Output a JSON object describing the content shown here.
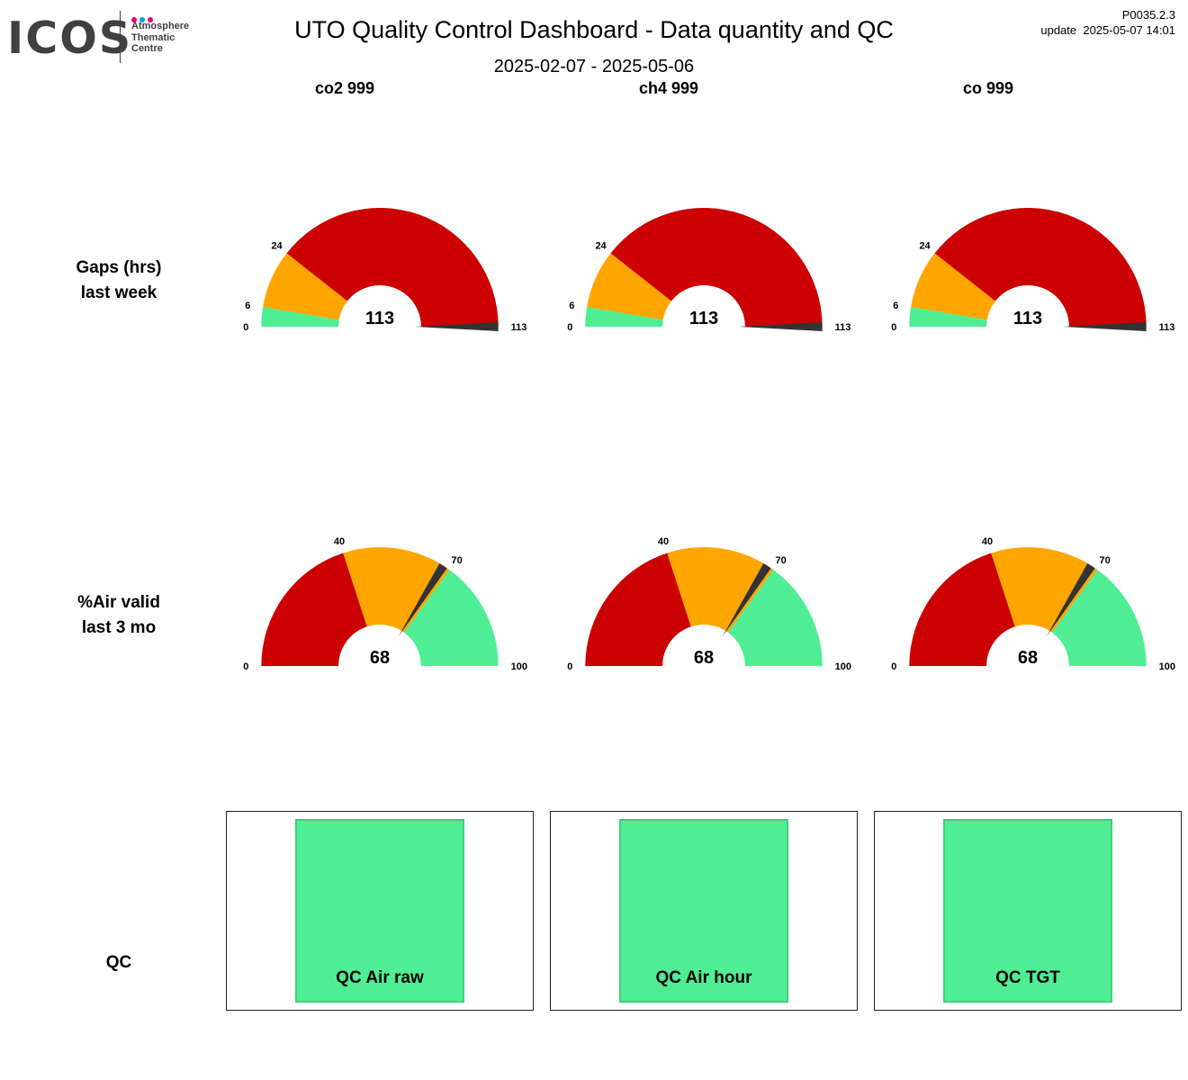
{
  "logo": {
    "word": "ICOS",
    "lines": [
      "Atmosphere",
      "Thematic",
      "Centre"
    ],
    "dot_colors": [
      "#e6007e",
      "#009fe3",
      "#e6007e"
    ]
  },
  "header": {
    "title": "UTO  Quality Control Dashboard - Data quantity and QC",
    "date_range": "2025-02-07 - 2025-05-06",
    "version": "P0035.2.3",
    "update": "update  2025-05-07 14:01"
  },
  "columns": [
    "co2 999",
    "ch4 999",
    "co 999"
  ],
  "rows": {
    "gaps_label": [
      "Gaps (hrs)",
      "last week"
    ],
    "air_label": [
      "%Air valid",
      "last 3 mo"
    ],
    "qc_label": "QC"
  },
  "colors": {
    "red": "#cc0000",
    "orange": "#ffa500",
    "green": "#4fee94",
    "needle": "#333333",
    "qc_border": "#3fcf7c"
  },
  "chart_data": [
    {
      "type": "gauge",
      "metric": "gaps",
      "min": 0,
      "max": 113,
      "thresholds": [
        0,
        6,
        24,
        113
      ],
      "zones": [
        "green",
        "orange",
        "red"
      ],
      "tick_labels": [
        "0",
        "6",
        "24",
        "113"
      ],
      "gauges": [
        {
          "column": "co2 999",
          "value": 113,
          "value_label": "113"
        },
        {
          "column": "ch4 999",
          "value": 113,
          "value_label": "113"
        },
        {
          "column": "co 999",
          "value": 113,
          "value_label": "113"
        }
      ]
    },
    {
      "type": "gauge",
      "metric": "air_valid_percent",
      "min": 0,
      "max": 100,
      "thresholds": [
        0,
        40,
        70,
        100
      ],
      "zones": [
        "red",
        "orange",
        "green"
      ],
      "tick_labels": [
        "0",
        "40",
        "70",
        "100"
      ],
      "gauges": [
        {
          "column": "co2 999",
          "value": 68,
          "value_label": "68"
        },
        {
          "column": "ch4 999",
          "value": 68,
          "value_label": "68"
        },
        {
          "column": "co 999",
          "value": 68,
          "value_label": "68"
        }
      ]
    }
  ],
  "qc": [
    {
      "label": "QC Air raw",
      "status": "green"
    },
    {
      "label": "QC Air hour",
      "status": "green"
    },
    {
      "label": "QC TGT",
      "status": "green"
    }
  ]
}
